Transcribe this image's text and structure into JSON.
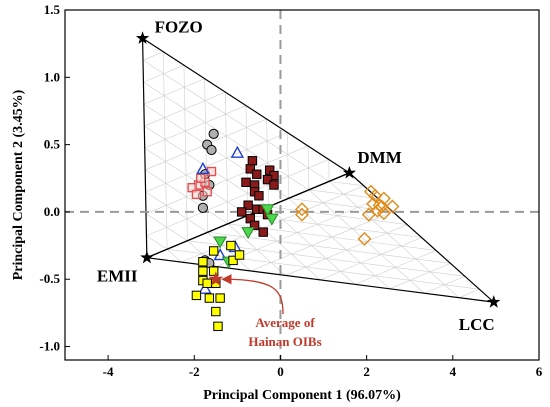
{
  "chart_data": {
    "type": "scatter",
    "title": "",
    "xlabel": "Principal Component 1 (96.07%)",
    "ylabel": "Principal Component 2 (3.45%)",
    "xlim": [
      -5,
      6
    ],
    "ylim": [
      -1.1,
      1.5
    ],
    "xticks": [
      -4,
      -2,
      0,
      2,
      4,
      6
    ],
    "yticks": [
      -1.0,
      -0.5,
      0.0,
      0.5,
      1.0,
      1.5
    ],
    "xtick_labels": [
      "-4",
      "-2",
      "0",
      "2",
      "4",
      "6"
    ],
    "ytick_labels": [
      "-1.0",
      "-0.5",
      "0.0",
      "0.5",
      "1.0",
      "1.5"
    ],
    "zero_lines": true,
    "end_members": [
      {
        "name": "FOZO",
        "x": -3.2,
        "y": 1.29
      },
      {
        "name": "DMM",
        "x": 1.6,
        "y": 0.29
      },
      {
        "name": "EMII",
        "x": -3.1,
        "y": -0.34
      },
      {
        "name": "LCC",
        "x": 4.95,
        "y": -0.67
      }
    ],
    "series": [
      {
        "marker": "circle-gray",
        "color": "#b0b0b0",
        "points": [
          [
            -1.55,
            0.58
          ],
          [
            -1.7,
            0.5
          ],
          [
            -1.6,
            0.46
          ],
          [
            -1.75,
            0.28
          ],
          [
            -1.65,
            0.2
          ],
          [
            -1.8,
            0.12
          ],
          [
            -1.8,
            0.03
          ],
          [
            -1.75,
            -0.36
          ],
          [
            -1.65,
            -0.38
          ]
        ]
      },
      {
        "marker": "square-open-red",
        "color": "#e05050",
        "points": [
          [
            -1.9,
            0.2
          ],
          [
            -1.75,
            0.22
          ],
          [
            -1.7,
            0.15
          ],
          [
            -2.05,
            0.18
          ],
          [
            -1.95,
            0.13
          ],
          [
            -1.6,
            0.3
          ],
          [
            -1.85,
            0.25
          ]
        ]
      },
      {
        "marker": "square-darkred",
        "color": "#8b1a1a",
        "points": [
          [
            -0.65,
            0.38
          ],
          [
            -0.7,
            0.32
          ],
          [
            -0.55,
            0.28
          ],
          [
            -0.25,
            0.31
          ],
          [
            -0.15,
            0.27
          ],
          [
            -0.8,
            0.22
          ],
          [
            -0.6,
            0.2
          ],
          [
            -0.3,
            0.24
          ],
          [
            -0.15,
            0.2
          ],
          [
            -0.6,
            0.15
          ],
          [
            -0.5,
            0.12
          ],
          [
            -0.75,
            0.05
          ],
          [
            -0.55,
            0.02
          ],
          [
            -0.9,
            0.0
          ],
          [
            -0.7,
            -0.05
          ],
          [
            -0.4,
            0.02
          ],
          [
            -0.3,
            -0.02
          ],
          [
            -0.4,
            -0.15
          ],
          [
            -0.6,
            -0.1
          ]
        ]
      },
      {
        "marker": "triangle-open-blue",
        "color": "#1f3fd0",
        "points": [
          [
            -1.8,
            0.32
          ],
          [
            -1.0,
            0.44
          ],
          [
            -1.05,
            -0.26
          ],
          [
            -1.4,
            -0.32
          ],
          [
            -1.75,
            -0.57
          ]
        ]
      },
      {
        "marker": "triangle-down-green",
        "color": "#4cd64c",
        "points": [
          [
            -1.4,
            -0.22
          ],
          [
            -0.75,
            -0.15
          ],
          [
            -1.2,
            -0.37
          ],
          [
            -0.3,
            0.02
          ],
          [
            -0.2,
            -0.05
          ]
        ]
      },
      {
        "marker": "square-yellow",
        "color": "#ffff00",
        "points": [
          [
            -1.55,
            -0.29
          ],
          [
            -1.15,
            -0.25
          ],
          [
            -1.1,
            -0.36
          ],
          [
            -0.95,
            -0.32
          ],
          [
            -1.8,
            -0.37
          ],
          [
            -1.8,
            -0.44
          ],
          [
            -1.8,
            -0.51
          ],
          [
            -1.7,
            -0.53
          ],
          [
            -1.55,
            -0.44
          ],
          [
            -1.5,
            -0.53
          ],
          [
            -1.95,
            -0.62
          ],
          [
            -1.65,
            -0.64
          ],
          [
            -1.4,
            -0.64
          ],
          [
            -1.5,
            -0.74
          ],
          [
            -1.45,
            -0.85
          ]
        ]
      },
      {
        "marker": "diamond-open-orange",
        "color": "#e08c1a",
        "points": [
          [
            2.2,
            0.12
          ],
          [
            2.4,
            0.1
          ],
          [
            2.15,
            0.06
          ],
          [
            2.35,
            0.04
          ],
          [
            2.6,
            0.04
          ],
          [
            2.25,
            0.01
          ],
          [
            2.4,
            -0.01
          ],
          [
            0.5,
            0.02
          ],
          [
            0.5,
            -0.02
          ],
          [
            2.1,
            0.15
          ],
          [
            2.05,
            -0.02
          ],
          [
            2.3,
            0.05
          ],
          [
            1.95,
            -0.2
          ]
        ]
      }
    ],
    "average_point": {
      "x": -1.5,
      "y": -0.5,
      "color": "#c0392b"
    },
    "annotation": {
      "text_lines": [
        "Average of",
        "Hainan OIBs"
      ],
      "color": "#c0392b"
    }
  }
}
